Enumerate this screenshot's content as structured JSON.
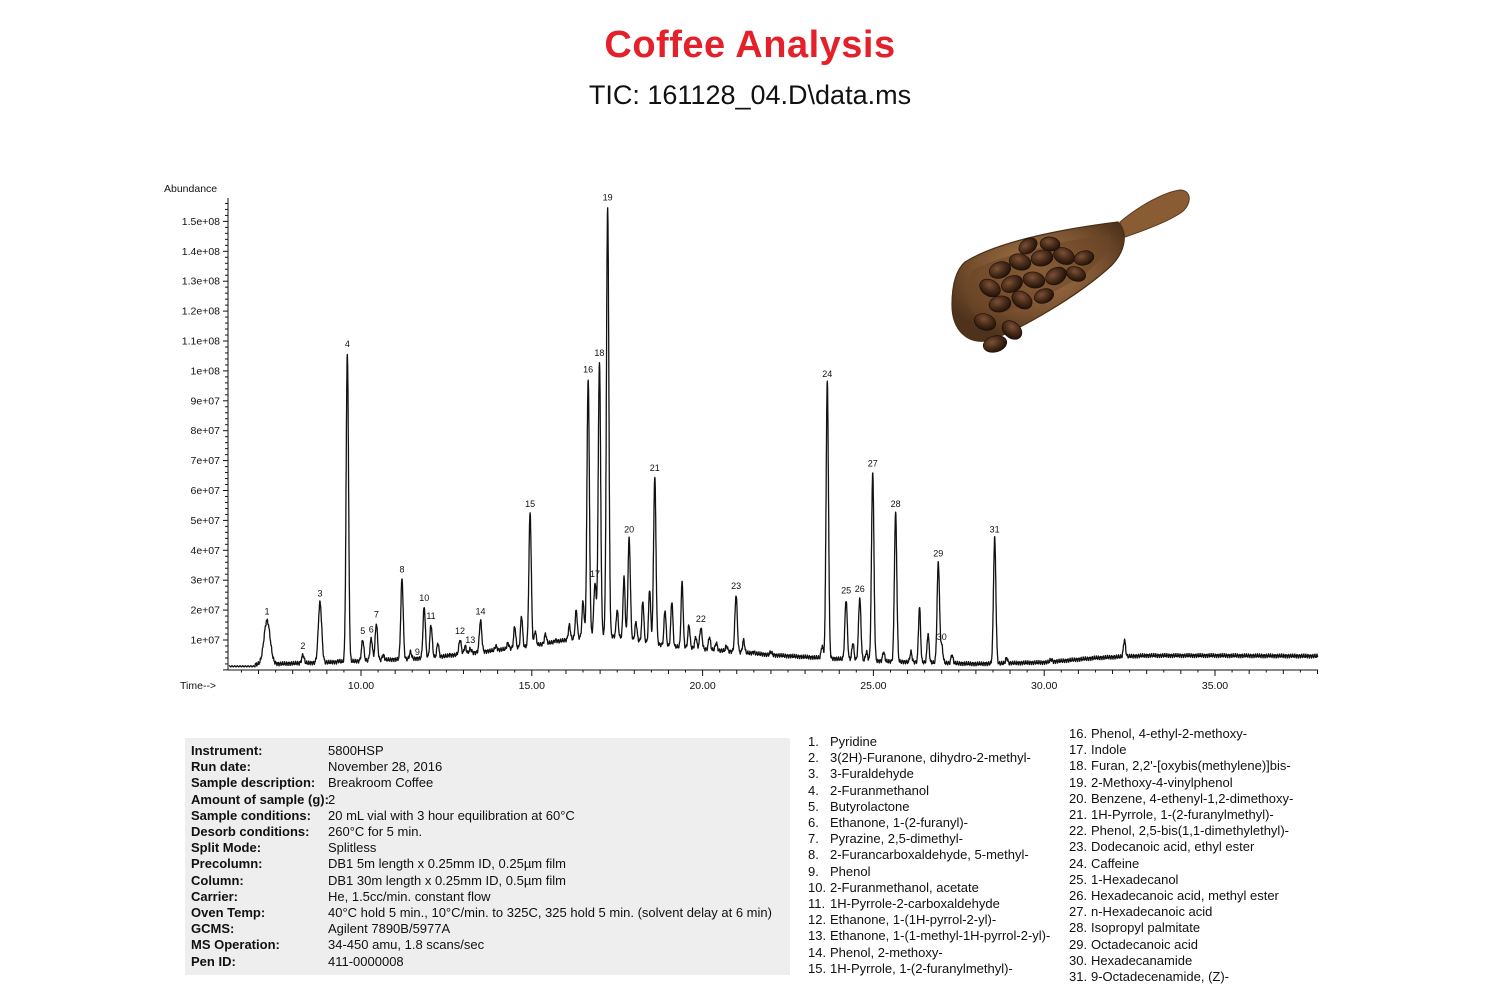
{
  "header": {
    "title": "Coffee Analysis",
    "subtitle": "TIC: 161128_04.D\\data.ms"
  },
  "chart_data": {
    "type": "line",
    "ylabel": "Abundance",
    "xlabel": "Time-->",
    "xlim": [
      4.5,
      38.2
    ],
    "ylim": [
      0,
      160000000.0
    ],
    "x_ticks": [
      10,
      15,
      20,
      25,
      30,
      35
    ],
    "x_tick_labels": [
      "10.00",
      "15.00",
      "20.00",
      "25.00",
      "30.00",
      "35.00"
    ],
    "y_ticks": [
      10000000.0,
      20000000.0,
      30000000.0,
      40000000.0,
      50000000.0,
      60000000.0,
      70000000.0,
      80000000.0,
      90000000.0,
      100000000.0,
      110000000.0,
      120000000.0,
      130000000.0,
      140000000.0,
      150000000.0
    ],
    "y_tick_labels": [
      "1e+07",
      "2e+07",
      "3e+07",
      "4e+07",
      "5e+07",
      "6e+07",
      "7e+07",
      "8e+07",
      "9e+07",
      "1e+08",
      "1.1e+08",
      "1.2e+08",
      "1.3e+08",
      "1.4e+08",
      "1.5e+08"
    ],
    "baseline": [
      [
        4.5,
        1500000.0
      ],
      [
        6.0,
        1500000.0
      ],
      [
        9.0,
        2500000.0
      ],
      [
        12.0,
        4000000.0
      ],
      [
        15.0,
        8000000.0
      ],
      [
        17.0,
        12000000.0
      ],
      [
        19.0,
        8000000.0
      ],
      [
        22.0,
        5000000.0
      ],
      [
        25.0,
        3000000.0
      ],
      [
        28.0,
        2000000.0
      ],
      [
        30.0,
        2500000.0
      ],
      [
        31.5,
        4000000.0
      ],
      [
        33.0,
        4800000.0
      ],
      [
        35.0,
        4800000.0
      ],
      [
        38.2,
        4600000.0
      ]
    ],
    "peaks": [
      {
        "label": "1",
        "x": 7.25,
        "y": 16500000.0
      },
      {
        "label": "2",
        "x": 8.3,
        "y": 5000000.0
      },
      {
        "label": "3",
        "x": 8.8,
        "y": 22500000.0
      },
      {
        "label": "4",
        "x": 9.6,
        "y": 106000000.0
      },
      {
        "label": "5",
        "x": 10.05,
        "y": 10000000.0
      },
      {
        "label": "6",
        "x": 10.3,
        "y": 10500000.0
      },
      {
        "label": "7",
        "x": 10.45,
        "y": 15500000.0
      },
      {
        "label": "8",
        "x": 11.2,
        "y": 30500000.0
      },
      {
        "label": "9",
        "x": 11.65,
        "y": 3000000.0
      },
      {
        "label": "10",
        "x": 11.85,
        "y": 21000000.0
      },
      {
        "label": "11",
        "x": 12.05,
        "y": 15000000.0
      },
      {
        "label": "12",
        "x": 12.9,
        "y": 10000000.0
      },
      {
        "label": "13",
        "x": 13.2,
        "y": 7000000.0
      },
      {
        "label": "14",
        "x": 13.5,
        "y": 16500000.0
      },
      {
        "label": "15",
        "x": 14.95,
        "y": 52500000.0
      },
      {
        "label": "16",
        "x": 16.65,
        "y": 97500000.0
      },
      {
        "label": "17",
        "x": 16.85,
        "y": 29000000.0
      },
      {
        "label": "18",
        "x": 16.98,
        "y": 103000000.0
      },
      {
        "label": "19",
        "x": 17.22,
        "y": 155000000.0
      },
      {
        "label": "20",
        "x": 17.85,
        "y": 44000000.0
      },
      {
        "label": "21",
        "x": 18.6,
        "y": 64500000.0
      },
      {
        "label": "22",
        "x": 19.95,
        "y": 14000000.0
      },
      {
        "label": "23",
        "x": 20.98,
        "y": 25000000.0
      },
      {
        "label": "24",
        "x": 23.65,
        "y": 96000000.0
      },
      {
        "label": "25",
        "x": 24.2,
        "y": 23500000.0
      },
      {
        "label": "26",
        "x": 24.6,
        "y": 24000000.0
      },
      {
        "label": "27",
        "x": 24.98,
        "y": 66000000.0
      },
      {
        "label": "28",
        "x": 25.65,
        "y": 52500000.0
      },
      {
        "label": "29",
        "x": 26.9,
        "y": 36000000.0
      },
      {
        "label": "30",
        "x": 27.0,
        "y": 8000000.0
      },
      {
        "label": "31",
        "x": 28.55,
        "y": 44000000.0
      }
    ],
    "minor_peaks": [
      [
        5.1,
        4000000.0
      ],
      [
        7.95,
        2000000.0
      ],
      [
        9.35,
        3000000.0
      ],
      [
        10.65,
        5000000.0
      ],
      [
        11.45,
        6000000.0
      ],
      [
        12.25,
        9000000.0
      ],
      [
        12.6,
        5000000.0
      ],
      [
        13.05,
        8000000.0
      ],
      [
        13.75,
        6000000.0
      ],
      [
        13.95,
        8000000.0
      ],
      [
        14.3,
        9000000.0
      ],
      [
        14.5,
        14500000.0
      ],
      [
        14.7,
        18000000.0
      ],
      [
        15.1,
        13000000.0
      ],
      [
        15.4,
        12000000.0
      ],
      [
        15.7,
        10000000.0
      ],
      [
        16.1,
        15000000.0
      ],
      [
        16.3,
        20000000.0
      ],
      [
        16.5,
        23000000.0
      ],
      [
        17.5,
        20000000.0
      ],
      [
        17.7,
        31000000.0
      ],
      [
        18.05,
        16000000.0
      ],
      [
        18.25,
        23000000.0
      ],
      [
        18.45,
        27000000.0
      ],
      [
        18.9,
        20000000.0
      ],
      [
        19.1,
        23000000.0
      ],
      [
        19.4,
        29500000.0
      ],
      [
        19.6,
        15000000.0
      ],
      [
        19.8,
        11000000.0
      ],
      [
        20.2,
        11000000.0
      ],
      [
        20.4,
        9000000.0
      ],
      [
        20.7,
        8000000.0
      ],
      [
        21.2,
        10000000.0
      ],
      [
        21.5,
        6000000.0
      ],
      [
        22.0,
        6000000.0
      ],
      [
        23.5,
        8000000.0
      ],
      [
        24.4,
        9000000.0
      ],
      [
        24.8,
        6000000.0
      ],
      [
        25.3,
        6000000.0
      ],
      [
        26.1,
        6000000.0
      ],
      [
        26.35,
        21000000.0
      ],
      [
        26.6,
        12000000.0
      ],
      [
        27.3,
        5000000.0
      ],
      [
        28.9,
        4000000.0
      ],
      [
        30.2,
        3500000.0
      ],
      [
        32.35,
        10000000.0
      ]
    ]
  },
  "info": [
    {
      "key": "Instrument:",
      "value": "5800HSP"
    },
    {
      "key": "Run date:",
      "value": "November 28, 2016"
    },
    {
      "key": "Sample description:",
      "value": "Breakroom Coffee"
    },
    {
      "key": "Amount of sample (g):",
      "value": "2"
    },
    {
      "key": "Sample conditions:",
      "value": "20 mL vial with 3 hour equilibration at 60°C"
    },
    {
      "key": "Desorb conditions:",
      "value": "260°C for 5 min."
    },
    {
      "key": "Split Mode:",
      "value": "Splitless"
    },
    {
      "key": "Precolumn:",
      "value": "DB1 5m length x 0.25mm ID, 0.25µm film"
    },
    {
      "key": "Column:",
      "value": "DB1 30m length x 0.25mm ID, 0.5µm film"
    },
    {
      "key": "Carrier:",
      "value": "He, 1.5cc/min. constant flow"
    },
    {
      "key": "Oven Temp:",
      "value": "40°C hold 5 min., 10°C/min. to 325C, 325 hold 5 min. (solvent delay at 6 min)"
    },
    {
      "key": "GCMS:",
      "value": "Agilent 7890B/5977A"
    },
    {
      "key": "MS Operation:",
      "value": "34-450 amu, 1.8 scans/sec"
    },
    {
      "key": "Pen ID:",
      "value": "411-0000008"
    }
  ],
  "peak_list": [
    {
      "num": "1.",
      "name": "Pyridine"
    },
    {
      "num": "2.",
      "name": "3(2H)-Furanone, dihydro-2-methyl-"
    },
    {
      "num": "3.",
      "name": "3-Furaldehyde"
    },
    {
      "num": "4.",
      "name": "2-Furanmethanol"
    },
    {
      "num": "5.",
      "name": "Butyrolactone"
    },
    {
      "num": "6.",
      "name": "Ethanone, 1-(2-furanyl)-"
    },
    {
      "num": "7.",
      "name": "Pyrazine, 2,5-dimethyl-"
    },
    {
      "num": "8.",
      "name": "2-Furancarboxaldehyde, 5-methyl-"
    },
    {
      "num": "9.",
      "name": "Phenol"
    },
    {
      "num": "10.",
      "name": "2-Furanmethanol, acetate"
    },
    {
      "num": "11.",
      "name": "1H-Pyrrole-2-carboxaldehyde"
    },
    {
      "num": "12.",
      "name": "Ethanone, 1-(1H-pyrrol-2-yl)-"
    },
    {
      "num": "13.",
      "name": "Ethanone, 1-(1-methyl-1H-pyrrol-2-yl)-"
    },
    {
      "num": "14.",
      "name": "Phenol, 2-methoxy-"
    },
    {
      "num": "15.",
      "name": "1H-Pyrrole, 1-(2-furanylmethyl)-"
    },
    {
      "num": "16.",
      "name": "Phenol, 4-ethyl-2-methoxy-"
    },
    {
      "num": "17.",
      "name": "Indole"
    },
    {
      "num": "18.",
      "name": "Furan, 2,2'-[oxybis(methylene)]bis-"
    },
    {
      "num": "19.",
      "name": "2-Methoxy-4-vinylphenol"
    },
    {
      "num": "20.",
      "name": "Benzene, 4-ethenyl-1,2-dimethoxy-"
    },
    {
      "num": "21.",
      "name": "1H-Pyrrole, 1-(2-furanylmethyl)-"
    },
    {
      "num": "22.",
      "name": "Phenol, 2,5-bis(1,1-dimethylethyl)-"
    },
    {
      "num": "23.",
      "name": "Dodecanoic acid, ethyl ester"
    },
    {
      "num": "24.",
      "name": "Caffeine"
    },
    {
      "num": "25.",
      "name": "1-Hexadecanol"
    },
    {
      "num": "26.",
      "name": "Hexadecanoic acid, methyl ester"
    },
    {
      "num": "27.",
      "name": "n-Hexadecanoic acid"
    },
    {
      "num": "28.",
      "name": "Isopropyl palmitate"
    },
    {
      "num": "29.",
      "name": "Octadecanoic acid"
    },
    {
      "num": "30.",
      "name": "Hexadecanamide"
    },
    {
      "num": "31.",
      "name": "9-Octadecenamide, (Z)-"
    }
  ],
  "image": {
    "icon": "coffee-scoop-icon"
  }
}
